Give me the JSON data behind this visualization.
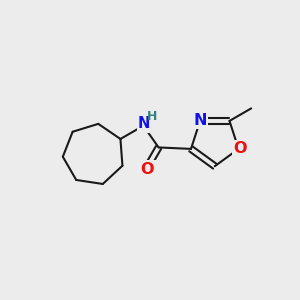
{
  "bg_color": "#ececec",
  "bond_color": "#1a1a1a",
  "bond_width": 1.5,
  "atom_colors": {
    "N": "#1010ee",
    "O": "#ee1010",
    "H": "#3a8080"
  },
  "font_size": 11.5
}
